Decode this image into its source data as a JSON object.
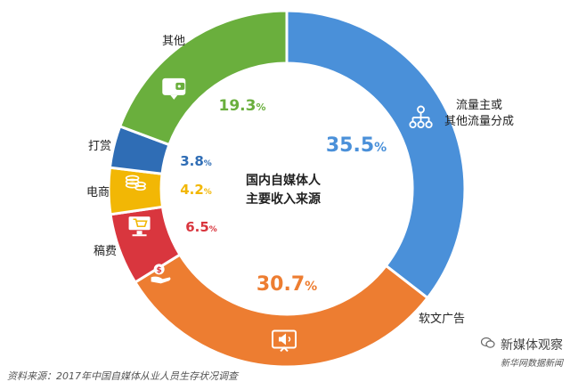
{
  "chart_data": {
    "type": "donut",
    "title": "国内自媒体人主要收入来源",
    "title_lines": [
      "国内自媒体人",
      "主要收入来源"
    ],
    "series": [
      {
        "name": "流量主或其他流量分成",
        "label_lines": [
          "流量主或",
          "其他流量分成"
        ],
        "value": 35.5,
        "value_text": "35.5",
        "color": "#4A90D9",
        "icon": "hierarchy-icon"
      },
      {
        "name": "软文广告",
        "label_lines": [
          "软文广告"
        ],
        "value": 30.7,
        "value_text": "30.7",
        "color": "#ED7D31",
        "icon": "speaker-icon"
      },
      {
        "name": "稿费",
        "label_lines": [
          "稿费"
        ],
        "value": 6.5,
        "value_text": "6.5",
        "color": "#D9363E",
        "icon": "money-hand-icon"
      },
      {
        "name": "电商",
        "label_lines": [
          "电商"
        ],
        "value": 4.2,
        "value_text": "4.2",
        "color": "#F2B705",
        "icon": "cart-icon"
      },
      {
        "name": "打赏",
        "label_lines": [
          "打赏"
        ],
        "value": 3.8,
        "value_text": "3.8",
        "color": "#2F6DB5",
        "icon": "coins-icon"
      },
      {
        "name": "其他",
        "label_lines": [
          "其他"
        ],
        "value": 19.3,
        "value_text": "19.3",
        "color": "#6AAF3D",
        "icon": "wallet-icon"
      }
    ],
    "percent_sign": "%"
  },
  "footer": {
    "source": "资料来源：2017年中国自媒体从业人员生存状况调查"
  },
  "brand": {
    "name": "新媒体观察",
    "sub": "新华网数据新闻"
  }
}
